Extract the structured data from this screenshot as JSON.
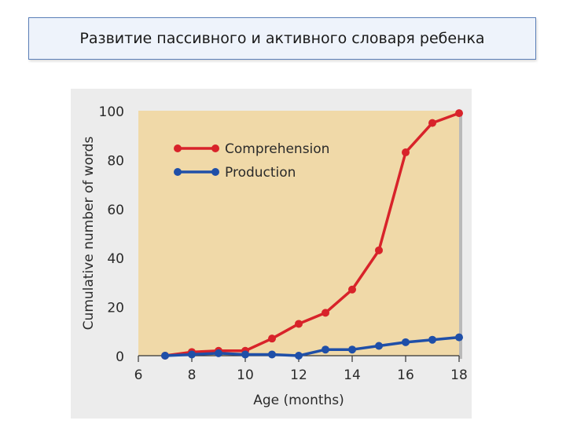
{
  "slide": {
    "title": "Развитие пассивного и активного словаря ребенка"
  },
  "chart_data": {
    "type": "line",
    "xlabel": "Age (months)",
    "ylabel": "Cumulative number of words",
    "xlim": [
      6,
      18
    ],
    "ylim": [
      0,
      100
    ],
    "xticks": [
      6,
      8,
      10,
      12,
      14,
      16,
      18
    ],
    "yticks": [
      0,
      20,
      40,
      60,
      80,
      100
    ],
    "legend_position": "top-left",
    "background_color": "#f0d9a8",
    "series": [
      {
        "name": "Comprehension",
        "color": "#d8232a",
        "x": [
          7,
          8,
          9,
          10,
          11,
          12,
          13,
          14,
          15,
          16,
          17,
          18
        ],
        "values": [
          0,
          1.5,
          2,
          2,
          7,
          13,
          17.5,
          27,
          43,
          83,
          95,
          99
        ]
      },
      {
        "name": "Production",
        "color": "#1f4fa8",
        "x": [
          7,
          8,
          9,
          10,
          11,
          12,
          13,
          14,
          15,
          16,
          17,
          18
        ],
        "values": [
          0,
          0.5,
          1,
          0.5,
          0.5,
          0,
          2.5,
          2.5,
          4,
          5.5,
          6.5,
          7.5
        ]
      }
    ]
  }
}
